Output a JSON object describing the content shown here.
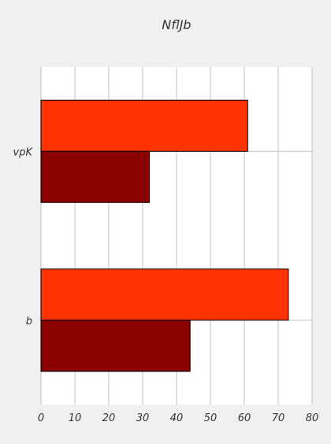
{
  "chart_data": {
    "type": "bar",
    "orientation": "horizontal",
    "title": "NflJb",
    "xlabel": "",
    "ylabel": "",
    "categories": [
      "vpK",
      "b"
    ],
    "series": [
      {
        "color": "#ff3300",
        "values": [
          61,
          73
        ]
      },
      {
        "color": "#8b0000",
        "values": [
          32,
          44
        ]
      }
    ],
    "xlim": [
      0,
      80
    ],
    "xticks": [
      0,
      10,
      20,
      30,
      40,
      50,
      60,
      70,
      80
    ],
    "grid": true,
    "legend": "none"
  },
  "colors": {
    "background": "#f0f0f0",
    "plot_background": "#ffffff",
    "grid": "#cbcbcb",
    "bar_edge": "#000000"
  }
}
